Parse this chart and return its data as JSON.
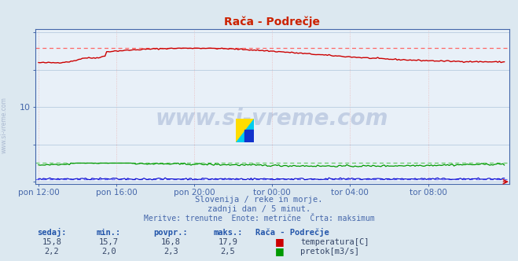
{
  "title": "Rača - Podrečje",
  "bg_color": "#dce8f0",
  "plot_bg_color": "#e8f0f8",
  "grid_color_h": "#b8cce0",
  "grid_color_v": "#e8b8b8",
  "x_tick_labels": [
    "pon 12:00",
    "pon 16:00",
    "pon 20:00",
    "tor 00:00",
    "tor 04:00",
    "tor 08:00"
  ],
  "x_tick_positions": [
    0,
    48,
    96,
    144,
    192,
    240
  ],
  "y_ticks": [
    0,
    5,
    10,
    15,
    20
  ],
  "y_lim": [
    -0.3,
    20.5
  ],
  "x_lim": [
    -2,
    290
  ],
  "temp_color": "#cc0000",
  "flow_color": "#009900",
  "height_color": "#0000cc",
  "dashed_color_red": "#ff6666",
  "dashed_color_green": "#66cc66",
  "dashed_color_blue": "#6666ff",
  "temp_max": 17.9,
  "temp_min": 15.7,
  "temp_avg": 16.8,
  "temp_current": 15.8,
  "flow_max": 2.5,
  "flow_min": 2.0,
  "flow_avg": 2.3,
  "flow_current": 2.2,
  "subtitle1": "Slovenija / reke in morje.",
  "subtitle2": "zadnji dan / 5 minut.",
  "subtitle3": "Meritve: trenutne  Enote: metrične  Črta: maksimum",
  "label_sedaj": "sedaj:",
  "label_min": "min.:",
  "label_povpr": "povpr.:",
  "label_maks": "maks.:",
  "label_station": "Rača - Podrečje",
  "label_temp": "temperatura[C]",
  "label_flow": "pretok[m3/s]",
  "watermark": "www.si-vreme.com",
  "title_color": "#cc2200",
  "axis_color": "#4466aa",
  "label_color": "#2255aa",
  "text_color": "#334466",
  "n_points": 288
}
